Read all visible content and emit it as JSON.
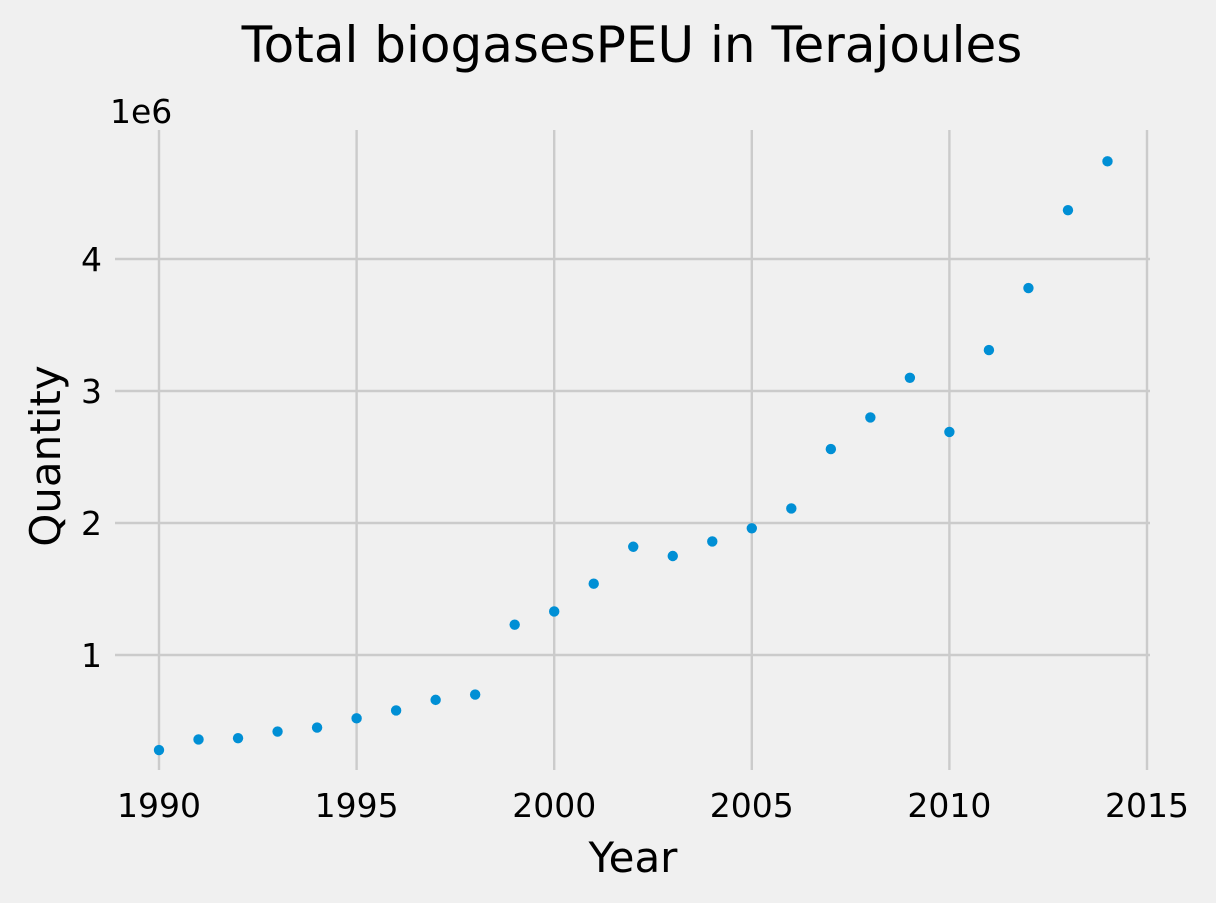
{
  "chart_data": {
    "type": "scatter",
    "title": "Total biogasesPEU in Terajoules",
    "xlabel": "Year",
    "ylabel": "Quantity",
    "y_offset_label": "1e6",
    "xlim": [
      1990,
      2015
    ],
    "ylim": [
      0,
      5
    ],
    "grid": true,
    "x_ticks": [
      1990,
      1995,
      2000,
      2005,
      2010,
      2015
    ],
    "x_tick_labels": [
      "1990",
      "1995",
      "2000",
      "2005",
      "2010",
      "2015"
    ],
    "y_ticks": [
      1,
      2,
      3,
      4
    ],
    "y_tick_labels": [
      "1",
      "2",
      "3",
      "4"
    ],
    "series": [
      {
        "color": "#008fd5",
        "x": [
          1990,
          1991,
          1992,
          1993,
          1994,
          1995,
          1996,
          1997,
          1998,
          1999,
          2000,
          2001,
          2002,
          2003,
          2004,
          2005,
          2006,
          2007,
          2008,
          2009,
          2010,
          2011,
          2012,
          2013,
          2014
        ],
        "y": [
          0.28,
          0.36,
          0.37,
          0.42,
          0.45,
          0.52,
          0.58,
          0.66,
          0.7,
          1.23,
          1.33,
          1.54,
          1.82,
          1.75,
          1.86,
          1.96,
          2.11,
          2.56,
          2.8,
          3.1,
          2.69,
          3.31,
          3.78,
          4.37,
          4.74
        ]
      }
    ]
  }
}
